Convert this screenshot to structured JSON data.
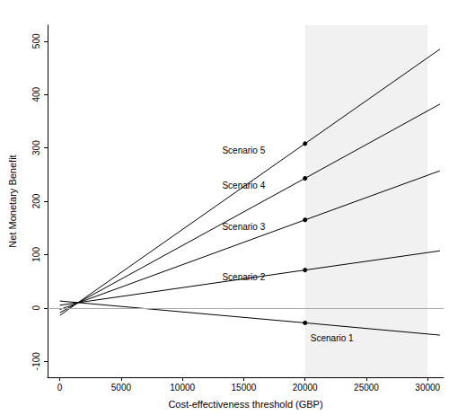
{
  "chart_data": {
    "type": "line",
    "x_label": "Cost-effectiveness threshold (GBP)",
    "y_label": "Net Monetary Benefit",
    "x": [
      0,
      20000,
      31000
    ],
    "series": [
      {
        "name": "Scenario 1",
        "color": "#000000",
        "values": [
          13,
          -28,
          -51
        ]
      },
      {
        "name": "Scenario 2",
        "color": "#000000",
        "values": [
          5,
          71,
          107
        ]
      },
      {
        "name": "Scenario 3",
        "color": "#000000",
        "values": [
          -3,
          165,
          257
        ]
      },
      {
        "name": "Scenario 4",
        "color": "#000000",
        "values": [
          -9,
          243,
          382
        ]
      },
      {
        "name": "Scenario 5",
        "color": "#000000",
        "values": [
          -14,
          308,
          485
        ]
      }
    ],
    "xlim": [
      -1000,
      31300
    ],
    "xticks": [
      0,
      5000,
      10000,
      15000,
      20000,
      25000,
      30000
    ],
    "ylim": [
      -130,
      530
    ],
    "yticks": [
      -100,
      0,
      100,
      200,
      300,
      400,
      500
    ],
    "shaded_x": [
      20000,
      30000
    ],
    "reference_y": 0,
    "grid": false
  }
}
